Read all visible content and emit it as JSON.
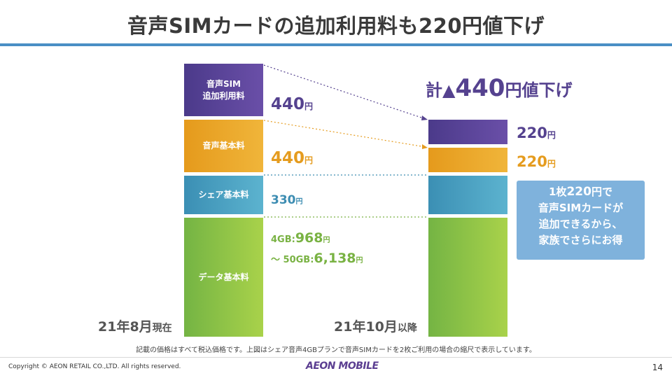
{
  "title": "音声SIMカードの追加利用料も220円値下げ",
  "colors": {
    "purple": "#55428f",
    "orange": "#e59c1f",
    "teal": "#3d8db2",
    "green": "#79b243",
    "accent_rule": "#4a8fc5"
  },
  "before": {
    "label_main": "21年8月",
    "label_suffix": "現在",
    "bars": {
      "voice_sim_line1": "音声SIM",
      "voice_sim_line2": "追加利用料",
      "voice_basic": "音声基本料",
      "share_basic": "シェア基本料",
      "data_basic": "データ基本料"
    },
    "prices": {
      "voice_sim": {
        "num": "440",
        "unit": "円"
      },
      "voice_basic": {
        "num": "440",
        "unit": "円"
      },
      "share_basic": {
        "num": "330",
        "unit": "円"
      },
      "data_4gb_label": "4GB:",
      "data_4gb_num": "968",
      "data_4gb_unit": "円",
      "data_50gb_label": "～ 50GB:",
      "data_50gb_num": "6,138",
      "data_50gb_unit": "円"
    }
  },
  "after": {
    "label_main": "21年10月",
    "label_suffix": "以降",
    "headline_prefix": "計▲",
    "headline_num": "440",
    "headline_suffix": "円値下げ",
    "prices": {
      "voice_sim": {
        "num": "220",
        "unit": "円"
      },
      "voice_basic": {
        "num": "220",
        "unit": "円"
      }
    }
  },
  "note": {
    "line1_a": "1枚",
    "line1_b": "220",
    "line1_c": "円で",
    "line2": "音声SIMカードが",
    "line3": "追加できるから、",
    "line4": "家族でさらにお得"
  },
  "footnote": "記載の価格はすべて税込価格です。上図はシェア音声4GBプランで音声SIMカードを2枚ご利用の場合の縮尺で表示しています。",
  "footer": {
    "copyright": "Copyright © AEON RETAIL CO.,LTD. All rights reserved.",
    "logo": "AEON MOBILE",
    "page_number": "14"
  }
}
